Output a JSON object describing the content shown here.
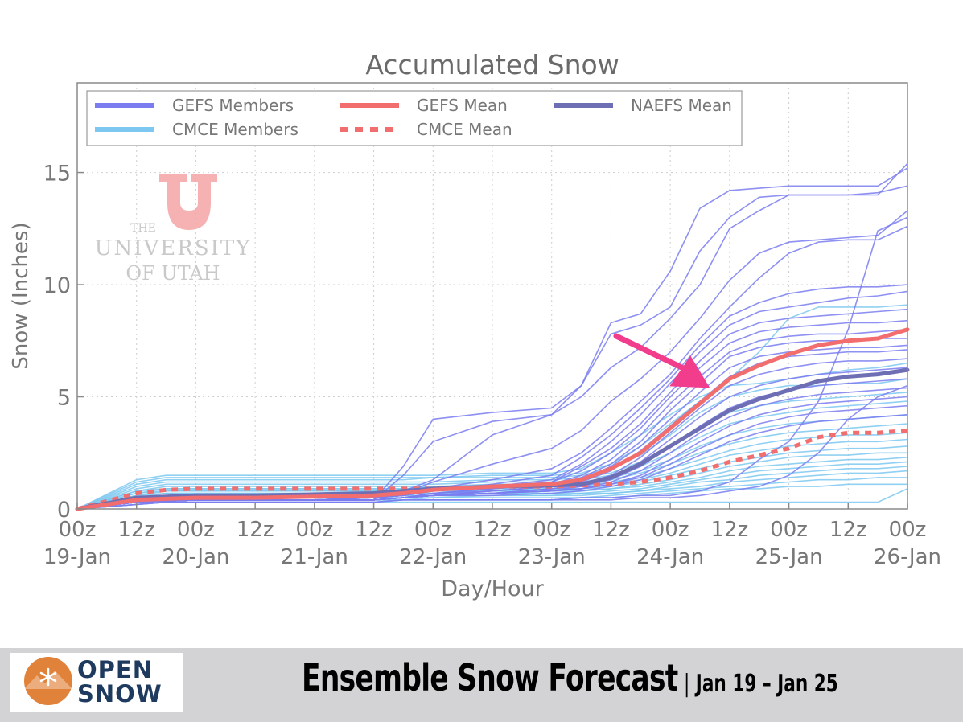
{
  "chart_data": {
    "type": "line",
    "title": "Accumulated Snow",
    "xlabel": "Day/Hour",
    "ylabel": "Snow (Inches)",
    "ylim": [
      0,
      19
    ],
    "xlim_hours": [
      0,
      168
    ],
    "yticks": [
      0,
      5,
      10,
      15
    ],
    "grid": true,
    "legend_position": "top-left",
    "x_tick_hours": [
      0,
      12,
      24,
      36,
      48,
      60,
      72,
      84,
      96,
      108,
      120,
      132,
      144,
      156,
      168
    ],
    "x_tick_hour_labels": [
      "00z",
      "12z",
      "00z",
      "12z",
      "00z",
      "12z",
      "00z",
      "12z",
      "00z",
      "12z",
      "00z",
      "12z",
      "00z",
      "12z",
      "00z"
    ],
    "x_day_labels": [
      {
        "hour": 0,
        "label": "19-Jan"
      },
      {
        "hour": 24,
        "label": "20-Jan"
      },
      {
        "hour": 48,
        "label": "21-Jan"
      },
      {
        "hour": 72,
        "label": "22-Jan"
      },
      {
        "hour": 96,
        "label": "23-Jan"
      },
      {
        "hour": 120,
        "label": "24-Jan"
      },
      {
        "hour": 144,
        "label": "25-Jan"
      },
      {
        "hour": 168,
        "label": "26-Jan"
      }
    ],
    "legend": [
      {
        "label": "GEFS Members",
        "color": "#7a7cf0",
        "style": "solid"
      },
      {
        "label": "CMCE Members",
        "color": "#7cc8f0",
        "style": "solid"
      },
      {
        "label": "GEFS Mean",
        "color": "#f26e6e",
        "style": "solid"
      },
      {
        "label": "CMCE Mean",
        "color": "#f26e6e",
        "style": "dotted"
      },
      {
        "label": "NAEFS Mean",
        "color": "#6e6eb4",
        "style": "solid"
      }
    ],
    "x": [
      0,
      12,
      18,
      24,
      36,
      48,
      60,
      66,
      72,
      84,
      96,
      102,
      108,
      114,
      120,
      126,
      132,
      138,
      144,
      150,
      156,
      162,
      168
    ],
    "series": [
      {
        "name": "GEFS Mean",
        "color": "#f26e6e",
        "style": "solid",
        "width": 5,
        "values": [
          0,
          0.4,
          0.45,
          0.5,
          0.5,
          0.55,
          0.6,
          0.7,
          0.85,
          1.0,
          1.1,
          1.3,
          1.8,
          2.5,
          3.6,
          4.7,
          5.8,
          6.4,
          6.9,
          7.3,
          7.5,
          7.6,
          8.0
        ]
      },
      {
        "name": "NAEFS Mean",
        "color": "#6e6eb4",
        "style": "solid",
        "width": 5,
        "values": [
          0,
          0.5,
          0.55,
          0.6,
          0.6,
          0.65,
          0.7,
          0.8,
          0.9,
          1.0,
          1.05,
          1.1,
          1.4,
          2.0,
          2.8,
          3.6,
          4.4,
          4.9,
          5.3,
          5.7,
          5.9,
          6.0,
          6.2
        ]
      },
      {
        "name": "CMCE Mean",
        "color": "#f26e6e",
        "style": "dotted",
        "width": 5,
        "values": [
          0,
          0.7,
          0.85,
          0.9,
          0.9,
          0.9,
          0.9,
          0.9,
          0.9,
          1.0,
          1.0,
          1.05,
          1.1,
          1.2,
          1.4,
          1.7,
          2.1,
          2.4,
          2.7,
          3.2,
          3.4,
          3.4,
          3.5
        ]
      }
    ],
    "gefs_members": [
      [
        0,
        0.3,
        0.35,
        0.4,
        0.4,
        0.4,
        0.4,
        1.9,
        4.0,
        4.3,
        4.5,
        5.5,
        8.3,
        8.7,
        10.6,
        13.4,
        14.2,
        14.3,
        14.4,
        14.4,
        14.4,
        14.4,
        15.2
      ],
      [
        0,
        0.3,
        0.35,
        0.4,
        0.4,
        0.4,
        0.4,
        1.5,
        3.0,
        3.9,
        4.2,
        5.5,
        7.8,
        8.2,
        9.0,
        11.5,
        13.0,
        13.9,
        14.0,
        14.0,
        14.0,
        14.1,
        14.4
      ],
      [
        0,
        0.3,
        0.35,
        0.4,
        0.4,
        0.4,
        0.5,
        0.8,
        1.3,
        3.3,
        4.2,
        5.0,
        6.3,
        7.2,
        8.5,
        10.0,
        12.5,
        13.3,
        14.0,
        14.0,
        14.0,
        14.0,
        15.4
      ],
      [
        0,
        0.3,
        0.35,
        0.4,
        0.4,
        0.4,
        0.5,
        0.7,
        1.2,
        2.0,
        2.7,
        3.5,
        4.8,
        5.8,
        7.0,
        8.5,
        10.2,
        11.4,
        11.9,
        12.0,
        12.1,
        12.2,
        13.3
      ],
      [
        0,
        0.3,
        0.35,
        0.4,
        0.4,
        0.4,
        0.5,
        0.6,
        0.9,
        1.3,
        1.8,
        2.5,
        3.6,
        4.8,
        6.0,
        7.6,
        9.0,
        10.3,
        11.4,
        11.9,
        12.0,
        12.0,
        12.6
      ],
      [
        0,
        0.3,
        0.35,
        0.4,
        0.4,
        0.4,
        0.5,
        0.6,
        0.8,
        1.1,
        1.5,
        2.3,
        3.3,
        4.5,
        5.8,
        7.3,
        8.6,
        9.2,
        9.6,
        9.8,
        9.9,
        9.9,
        10.0
      ],
      [
        0,
        0.3,
        0.35,
        0.4,
        0.4,
        0.4,
        0.5,
        0.6,
        0.8,
        1.0,
        1.3,
        2.0,
        3.0,
        4.2,
        5.6,
        7.0,
        8.2,
        8.8,
        9.0,
        9.2,
        9.4,
        9.5,
        9.7
      ],
      [
        0,
        0.3,
        0.35,
        0.4,
        0.4,
        0.4,
        0.5,
        0.6,
        0.8,
        1.0,
        1.2,
        1.9,
        2.7,
        3.8,
        5.2,
        6.6,
        7.8,
        8.3,
        8.5,
        8.6,
        8.7,
        8.8,
        8.9
      ],
      [
        0,
        0.3,
        0.35,
        0.4,
        0.4,
        0.4,
        0.4,
        0.5,
        0.7,
        0.9,
        1.2,
        1.7,
        2.5,
        3.6,
        5.0,
        6.3,
        7.4,
        7.9,
        8.1,
        8.2,
        8.3,
        8.3,
        8.4
      ],
      [
        0,
        0.3,
        0.35,
        0.4,
        0.4,
        0.4,
        0.4,
        0.5,
        0.7,
        0.9,
        1.1,
        1.5,
        2.2,
        3.3,
        4.7,
        5.9,
        7.0,
        7.5,
        7.7,
        7.8,
        7.8,
        7.9,
        8.0
      ],
      [
        0,
        0.3,
        0.35,
        0.4,
        0.4,
        0.4,
        0.4,
        0.5,
        0.7,
        0.8,
        1.0,
        1.4,
        2.0,
        3.0,
        4.4,
        5.6,
        6.8,
        7.2,
        7.4,
        7.5,
        7.5,
        7.6,
        7.6
      ],
      [
        0,
        0.3,
        0.35,
        0.4,
        0.4,
        0.4,
        0.4,
        0.5,
        0.6,
        0.8,
        1.0,
        1.3,
        1.9,
        2.8,
        4.0,
        5.2,
        6.3,
        6.8,
        7.0,
        7.1,
        7.2,
        7.2,
        7.3
      ],
      [
        0,
        0.3,
        0.35,
        0.4,
        0.4,
        0.4,
        0.4,
        0.5,
        0.6,
        0.8,
        1.0,
        1.2,
        1.7,
        2.6,
        3.7,
        4.8,
        5.9,
        6.5,
        6.8,
        6.9,
        7.0,
        7.0,
        7.1
      ],
      [
        0,
        0.3,
        0.35,
        0.4,
        0.4,
        0.4,
        0.4,
        0.5,
        0.6,
        0.7,
        0.9,
        1.1,
        1.5,
        2.3,
        3.4,
        4.5,
        5.5,
        6.0,
        6.3,
        6.5,
        6.6,
        6.6,
        6.7
      ],
      [
        0,
        0.3,
        0.35,
        0.4,
        0.4,
        0.4,
        0.4,
        0.5,
        0.6,
        0.7,
        0.9,
        1.0,
        1.4,
        2.1,
        3.1,
        4.1,
        5.0,
        5.5,
        5.8,
        6.0,
        6.1,
        6.2,
        6.3
      ],
      [
        0,
        0.3,
        0.35,
        0.4,
        0.4,
        0.4,
        0.4,
        0.5,
        0.6,
        0.7,
        0.8,
        1.0,
        1.3,
        1.9,
        2.8,
        3.7,
        4.5,
        5.0,
        5.3,
        5.5,
        5.6,
        5.7,
        5.8
      ],
      [
        0,
        0.3,
        0.35,
        0.4,
        0.4,
        0.4,
        0.4,
        0.5,
        0.6,
        0.7,
        0.8,
        0.9,
        1.2,
        1.7,
        2.5,
        3.4,
        4.1,
        4.6,
        4.9,
        5.1,
        5.2,
        5.3,
        5.4
      ],
      [
        0,
        0.3,
        0.35,
        0.4,
        0.4,
        0.4,
        0.4,
        0.5,
        0.6,
        0.7,
        0.8,
        0.9,
        1.1,
        1.5,
        2.2,
        3.0,
        3.7,
        4.2,
        4.5,
        4.7,
        4.8,
        4.9,
        5.0
      ],
      [
        0,
        0.3,
        0.35,
        0.4,
        0.4,
        0.4,
        0.4,
        0.5,
        0.6,
        0.7,
        0.8,
        0.9,
        1.1,
        1.4,
        2.0,
        2.7,
        3.3,
        3.8,
        4.1,
        4.3,
        4.4,
        4.5,
        4.6
      ],
      [
        0,
        0.3,
        0.35,
        0.4,
        0.4,
        0.4,
        0.4,
        0.5,
        0.6,
        0.6,
        0.7,
        0.8,
        1.0,
        1.3,
        1.8,
        2.4,
        3.0,
        3.4,
        3.7,
        3.9,
        4.0,
        4.1,
        4.2
      ],
      [
        0,
        0.2,
        0.3,
        0.3,
        0.3,
        0.3,
        0.3,
        0.4,
        0.4,
        0.4,
        0.4,
        0.5,
        0.5,
        0.6,
        0.6,
        0.8,
        1.2,
        2.2,
        3.0,
        4.8,
        8.0,
        12.4,
        13.0
      ],
      [
        0,
        0.2,
        0.3,
        0.3,
        0.3,
        0.3,
        0.3,
        0.4,
        0.4,
        0.4,
        0.4,
        0.4,
        0.4,
        0.5,
        0.5,
        0.6,
        0.8,
        1.0,
        1.5,
        2.5,
        4.0,
        5.0,
        5.5
      ]
    ],
    "cmce_members": [
      [
        0,
        1.3,
        1.5,
        1.5,
        1.5,
        1.5,
        1.5,
        1.5,
        1.5,
        1.6,
        1.6,
        1.8,
        2.5,
        3.3,
        4.2,
        5.0,
        5.5,
        5.6,
        5.8,
        6.0,
        6.2,
        6.3,
        6.5
      ],
      [
        0,
        1.2,
        1.4,
        1.4,
        1.4,
        1.4,
        1.4,
        1.4,
        1.4,
        1.5,
        1.5,
        1.6,
        2.0,
        2.8,
        3.8,
        4.8,
        5.8,
        7.0,
        8.5,
        9.0,
        9.0,
        9.0,
        9.1
      ],
      [
        0,
        1.1,
        1.3,
        1.3,
        1.3,
        1.3,
        1.3,
        1.3,
        1.4,
        1.4,
        1.4,
        1.5,
        1.8,
        2.4,
        3.3,
        4.3,
        5.0,
        5.3,
        5.5,
        5.5,
        5.6,
        5.6,
        5.8
      ],
      [
        0,
        1.0,
        1.2,
        1.2,
        1.2,
        1.2,
        1.2,
        1.2,
        1.2,
        1.3,
        1.3,
        1.4,
        1.6,
        2.1,
        2.8,
        3.6,
        4.3,
        4.6,
        4.8,
        4.9,
        5.0,
        5.1,
        5.2
      ],
      [
        0,
        0.9,
        1.1,
        1.1,
        1.1,
        1.1,
        1.1,
        1.1,
        1.1,
        1.2,
        1.2,
        1.3,
        1.5,
        1.9,
        2.5,
        3.2,
        3.8,
        4.1,
        4.3,
        4.5,
        4.6,
        4.7,
        4.8
      ],
      [
        0,
        0.8,
        1.0,
        1.0,
        1.0,
        1.0,
        1.0,
        1.0,
        1.0,
        1.1,
        1.1,
        1.2,
        1.4,
        1.7,
        2.2,
        2.8,
        3.3,
        3.6,
        3.8,
        3.9,
        4.0,
        4.1,
        4.2
      ],
      [
        0,
        0.8,
        0.9,
        0.9,
        0.9,
        0.9,
        0.9,
        0.9,
        1.0,
        1.0,
        1.0,
        1.1,
        1.3,
        1.6,
        2.0,
        2.5,
        2.9,
        3.2,
        3.4,
        3.5,
        3.6,
        3.7,
        3.8
      ],
      [
        0,
        0.7,
        0.9,
        0.9,
        0.9,
        0.9,
        0.9,
        0.9,
        0.9,
        1.0,
        1.0,
        1.0,
        1.2,
        1.4,
        1.8,
        2.2,
        2.6,
        2.9,
        3.1,
        3.2,
        3.3,
        3.3,
        3.4
      ],
      [
        0,
        0.7,
        0.8,
        0.8,
        0.8,
        0.8,
        0.8,
        0.8,
        0.8,
        0.9,
        0.9,
        0.9,
        1.1,
        1.3,
        1.6,
        2.0,
        2.4,
        2.6,
        2.8,
        2.9,
        3.0,
        3.0,
        3.1
      ],
      [
        0,
        0.6,
        0.8,
        0.8,
        0.8,
        0.8,
        0.8,
        0.8,
        0.8,
        0.8,
        0.9,
        0.9,
        1.0,
        1.2,
        1.5,
        1.8,
        2.1,
        2.3,
        2.5,
        2.6,
        2.7,
        2.7,
        2.8
      ],
      [
        0,
        0.6,
        0.7,
        0.7,
        0.7,
        0.7,
        0.7,
        0.7,
        0.7,
        0.8,
        0.8,
        0.8,
        0.9,
        1.1,
        1.3,
        1.6,
        1.9,
        2.1,
        2.3,
        2.4,
        2.4,
        2.5,
        2.5
      ],
      [
        0,
        0.5,
        0.7,
        0.7,
        0.7,
        0.7,
        0.7,
        0.7,
        0.7,
        0.7,
        0.7,
        0.8,
        0.9,
        1.0,
        1.2,
        1.4,
        1.7,
        1.9,
        2.0,
        2.1,
        2.2,
        2.2,
        2.3
      ],
      [
        0,
        0.5,
        0.6,
        0.6,
        0.6,
        0.6,
        0.6,
        0.6,
        0.6,
        0.7,
        0.7,
        0.7,
        0.8,
        0.9,
        1.1,
        1.3,
        1.5,
        1.7,
        1.8,
        1.9,
        2.0,
        2.0,
        2.1
      ],
      [
        0,
        0.4,
        0.6,
        0.6,
        0.6,
        0.6,
        0.6,
        0.6,
        0.6,
        0.6,
        0.6,
        0.7,
        0.7,
        0.8,
        1.0,
        1.2,
        1.3,
        1.5,
        1.6,
        1.7,
        1.8,
        1.8,
        1.9
      ],
      [
        0,
        0.4,
        0.5,
        0.5,
        0.5,
        0.5,
        0.5,
        0.5,
        0.5,
        0.6,
        0.6,
        0.6,
        0.7,
        0.8,
        0.9,
        1.0,
        1.2,
        1.3,
        1.4,
        1.5,
        1.6,
        1.6,
        1.7
      ],
      [
        0,
        0.3,
        0.4,
        0.4,
        0.4,
        0.4,
        0.4,
        0.4,
        0.5,
        0.5,
        0.5,
        0.5,
        0.6,
        0.7,
        0.8,
        0.9,
        1.0,
        1.1,
        1.2,
        1.3,
        1.3,
        1.4,
        1.4
      ],
      [
        0,
        0.3,
        0.4,
        0.4,
        0.4,
        0.4,
        0.4,
        0.4,
        0.4,
        0.4,
        0.4,
        0.5,
        0.5,
        0.6,
        0.7,
        0.8,
        0.9,
        0.9,
        1.0,
        1.0,
        1.1,
        1.1,
        1.1
      ],
      [
        0,
        0.2,
        0.3,
        0.3,
        0.3,
        0.3,
        0.3,
        0.3,
        0.3,
        0.3,
        0.3,
        0.3,
        0.3,
        0.3,
        0.3,
        0.3,
        0.3,
        0.3,
        0.3,
        0.3,
        0.3,
        0.3,
        0.9
      ]
    ],
    "annotation": {
      "type": "arrow",
      "color": "#f23c8c",
      "target_hour": 128,
      "target_value": 5.4
    }
  },
  "watermark": {
    "lines": [
      "THE",
      "UNIVERSITY",
      "OF UTAH"
    ],
    "color": "#f4a5a5"
  },
  "footer": {
    "logo_line1": "OPEN",
    "logo_line2": "SNOW",
    "logo_color": "#1f3a5f",
    "logo_accent": "#e0823a",
    "title": "Ensemble Snow Forecast",
    "separator": "|",
    "subtitle": "Jan 19 – Jan 25"
  }
}
